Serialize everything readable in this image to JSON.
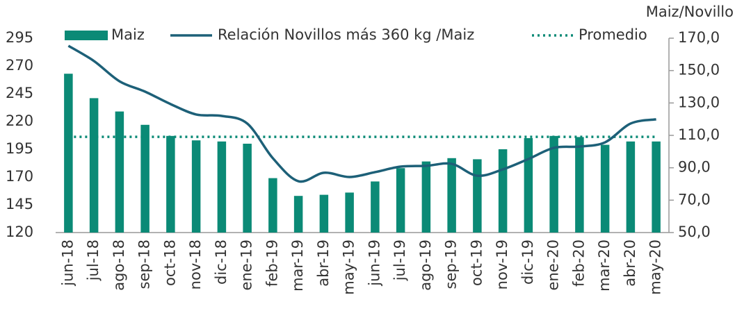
{
  "chart_data": {
    "type": "bar-line",
    "y2_title": "Maiz/Novillo",
    "categories": [
      "jun-18",
      "jul-18",
      "ago-18",
      "sep-18",
      "oct-18",
      "nov-18",
      "dic-18",
      "ene-19",
      "feb-19",
      "mar-19",
      "abr-19",
      "may-19",
      "jun-19",
      "jul-19",
      "ago-19",
      "sep-19",
      "oct-19",
      "nov-19",
      "dic-19",
      "ene-20",
      "feb-20",
      "mar-20",
      "abr-20",
      "may-20"
    ],
    "series": [
      {
        "name": "Maiz",
        "type": "bar",
        "color": "#0b8a76",
        "axis": "y",
        "values": [
          263,
          241,
          229,
          217,
          207,
          203,
          202,
          200,
          169,
          153,
          154,
          156,
          166,
          178,
          184,
          187,
          186,
          195,
          205,
          207,
          206,
          199,
          202,
          202
        ]
      },
      {
        "name": "Relación Novillos más 360 kg /Maiz",
        "type": "line",
        "color": "#1d6078",
        "axis": "y2",
        "values": [
          165.3,
          155.9,
          143.4,
          137,
          129.3,
          122.9,
          122,
          117.3,
          95.9,
          81.7,
          86.9,
          84.3,
          87.3,
          90.7,
          91.2,
          92.4,
          85.1,
          89,
          95.4,
          102.3,
          103.1,
          105.7,
          117.3,
          119.9
        ]
      },
      {
        "name": "Promedio",
        "type": "hline",
        "color": "#0b8a76",
        "axis": "y2",
        "value": 109.1
      }
    ],
    "ylim": [
      120,
      295
    ],
    "yticks": [
      120,
      145,
      170,
      195,
      220,
      245,
      270,
      295
    ],
    "y2lim": [
      50,
      170
    ],
    "y2ticks": [
      {
        "value": 50,
        "label": "50,0"
      },
      {
        "value": 70,
        "label": "70,0"
      },
      {
        "value": 90,
        "label": "90,0"
      },
      {
        "value": 110,
        "label": "110,0"
      },
      {
        "value": 130,
        "label": "130,0"
      },
      {
        "value": 150,
        "label": "150,0"
      },
      {
        "value": 170,
        "label": "170,0"
      }
    ]
  }
}
